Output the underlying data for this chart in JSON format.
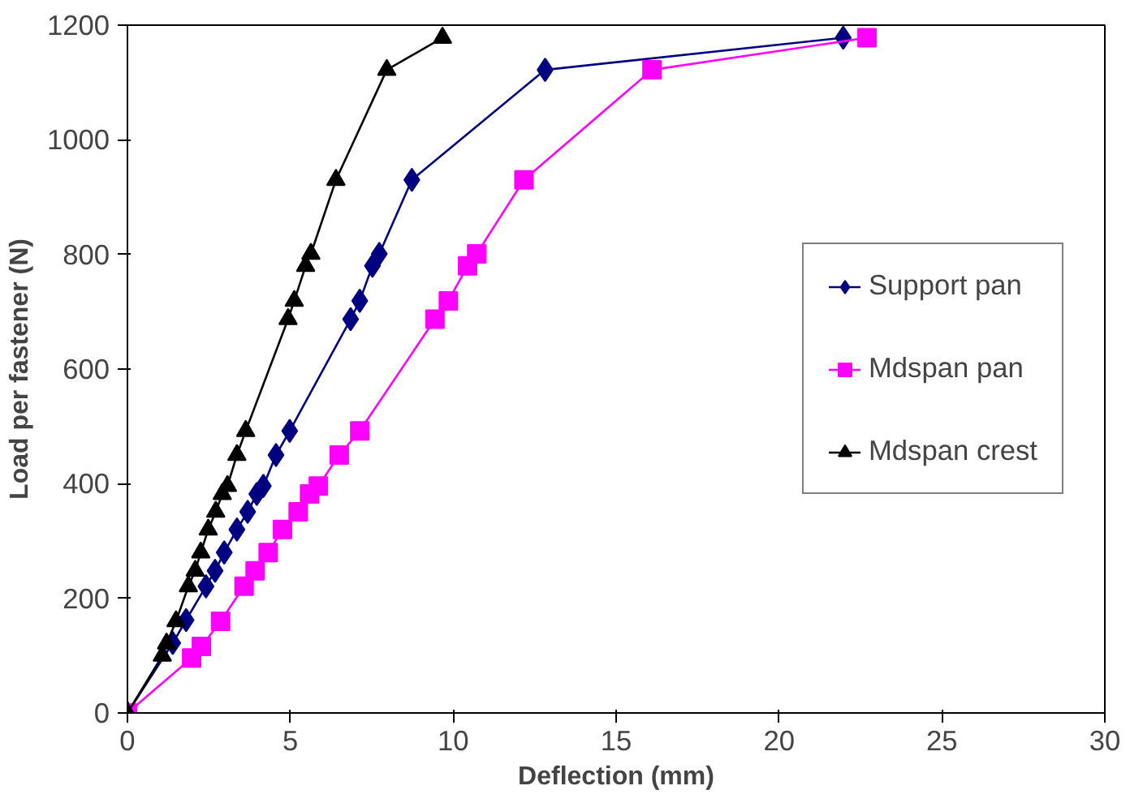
{
  "chart_data": {
    "type": "line",
    "xlabel": "Deflection (mm)",
    "ylabel": "Load per fastener (N)",
    "xlim": [
      0,
      30
    ],
    "ylim": [
      0,
      1200
    ],
    "xticks": [
      0,
      5,
      10,
      15,
      20,
      25,
      30
    ],
    "yticks": [
      0,
      200,
      400,
      600,
      800,
      1000,
      1200
    ],
    "grid": false,
    "legend": "right",
    "series": [
      {
        "name": "Support pan",
        "color": "#000080",
        "marker": "diamond",
        "x": [
          0,
          1.39,
          1.8,
          2.41,
          2.69,
          2.97,
          3.36,
          3.69,
          3.97,
          4.17,
          4.56,
          4.98,
          6.85,
          7.13,
          7.52,
          7.73,
          8.73,
          12.82,
          21.97
        ],
        "values": [
          0,
          122,
          162,
          221,
          248,
          280,
          320,
          351,
          382,
          396,
          450,
          492,
          687,
          719,
          780,
          801,
          930,
          1122,
          1178
        ]
      },
      {
        "name": "Mdspan pan",
        "color": "#ff00ff",
        "marker": "square",
        "x": [
          0,
          1.97,
          2.27,
          2.86,
          3.58,
          3.92,
          4.32,
          4.76,
          5.24,
          5.59,
          5.86,
          6.5,
          7.13,
          9.44,
          9.85,
          10.44,
          10.72,
          12.17,
          16.1,
          22.7
        ],
        "values": [
          0,
          96,
          116,
          160,
          221,
          248,
          280,
          320,
          351,
          382,
          396,
          450,
          492,
          687,
          719,
          780,
          801,
          930,
          1122,
          1178
        ]
      },
      {
        "name": "Mdspan crest",
        "color": "#000000",
        "marker": "triangle",
        "x": [
          0,
          1.07,
          1.2,
          1.49,
          1.87,
          2.08,
          2.25,
          2.48,
          2.71,
          2.91,
          3.07,
          3.36,
          3.63,
          4.93,
          5.12,
          5.47,
          5.63,
          6.4,
          7.96,
          9.67
        ],
        "values": [
          0,
          100,
          121,
          160,
          221,
          248,
          280,
          320,
          351,
          382,
          396,
          450,
          492,
          687,
          719,
          780,
          801,
          930,
          1122,
          1178
        ]
      }
    ]
  }
}
